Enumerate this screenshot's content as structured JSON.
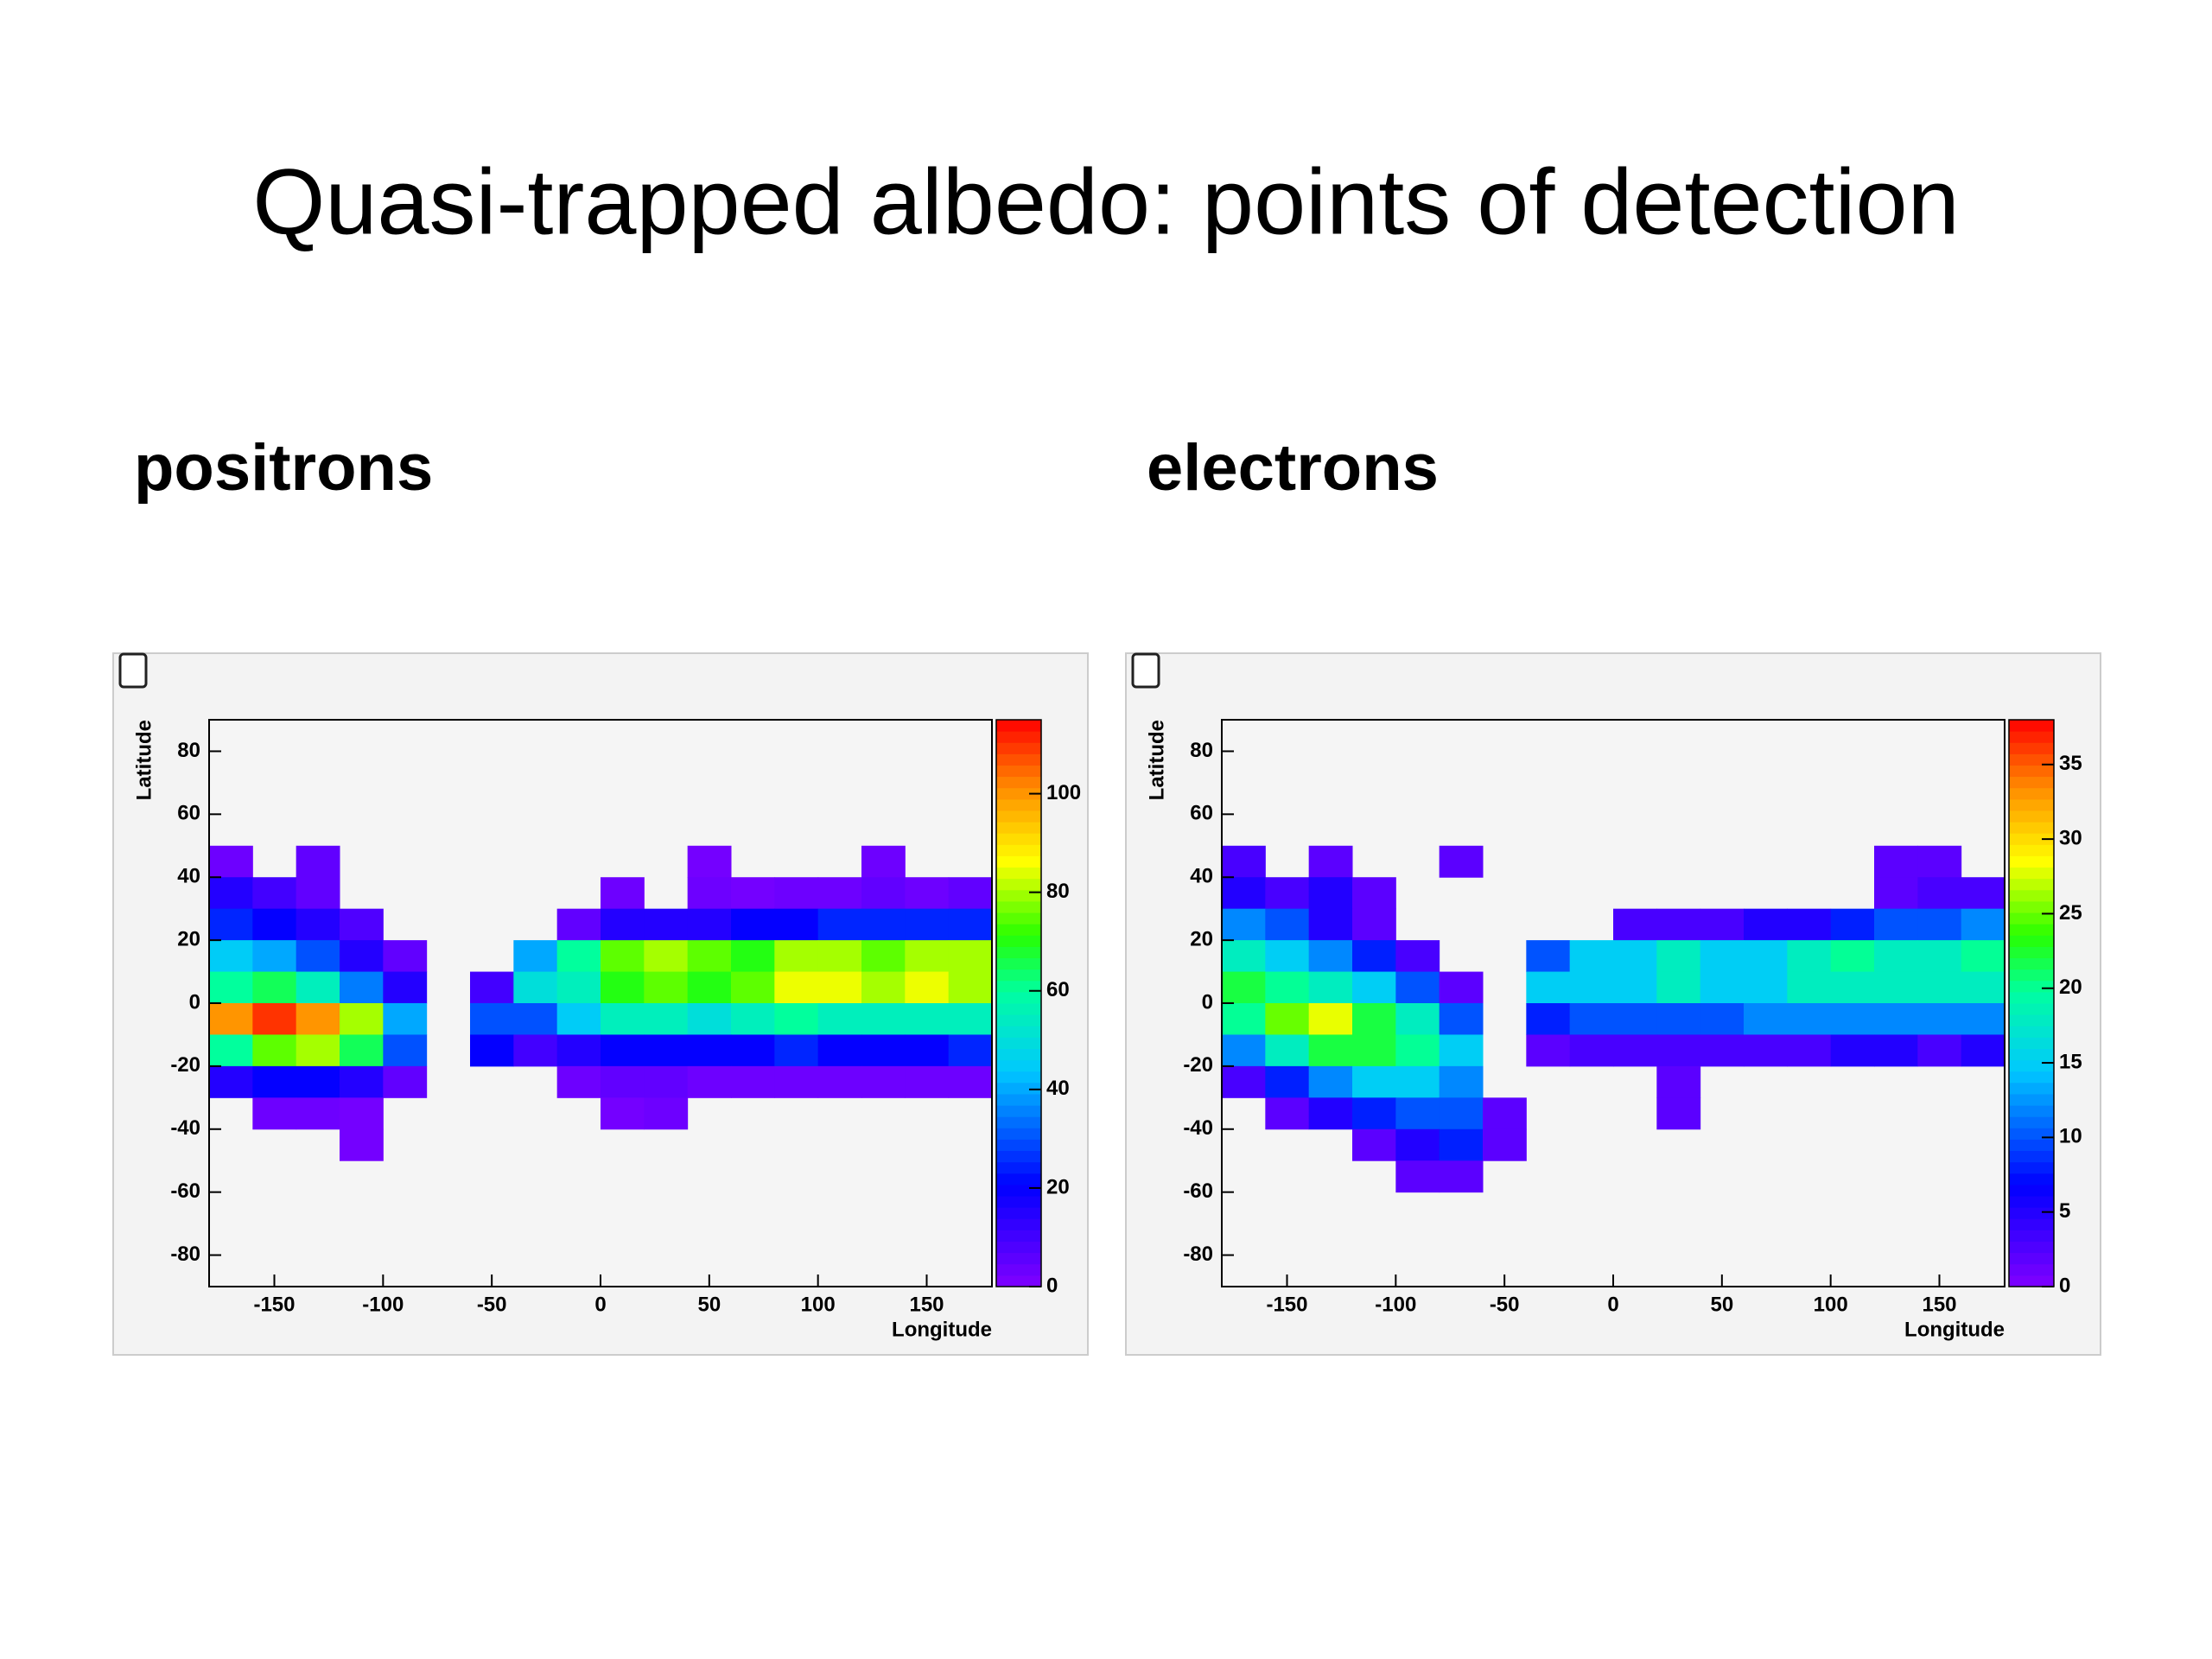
{
  "title": "Quasi-trapped albedo: points of detection",
  "chart_data": [
    {
      "type": "heatmap",
      "title": "positrons",
      "x_label": "Longitude",
      "y_label": "Latitude",
      "xlim": [
        -180,
        180
      ],
      "xticks": [
        -150,
        -100,
        -50,
        0,
        50,
        100,
        150
      ],
      "ylim": [
        -90,
        90
      ],
      "yticks": [
        -80,
        -60,
        -40,
        -20,
        0,
        20,
        40,
        60,
        80
      ],
      "zlim": [
        0,
        115
      ],
      "zticks": [
        0,
        20,
        40,
        60,
        80,
        100
      ],
      "values": [
        [
          0,
          0,
          0,
          0,
          0,
          0,
          0,
          0,
          0,
          0,
          0,
          0,
          0,
          0,
          0,
          0,
          0,
          0
        ],
        [
          0,
          0,
          0,
          0,
          0,
          0,
          0,
          0,
          0,
          0,
          0,
          0,
          0,
          0,
          0,
          0,
          0,
          0
        ],
        [
          0,
          0,
          0,
          0,
          0,
          0,
          0,
          0,
          0,
          0,
          0,
          0,
          0,
          0,
          0,
          0,
          0,
          0
        ],
        [
          0,
          0,
          0,
          0,
          0,
          0,
          0,
          0,
          0,
          0,
          0,
          0,
          0,
          0,
          0,
          0,
          0,
          0
        ],
        [
          3,
          0,
          5,
          0,
          0,
          0,
          0,
          0,
          0,
          0,
          0,
          2,
          0,
          0,
          0,
          3,
          0,
          0
        ],
        [
          15,
          10,
          5,
          0,
          0,
          0,
          0,
          0,
          0,
          3,
          0,
          3,
          2,
          3,
          3,
          5,
          3,
          5
        ],
        [
          25,
          20,
          15,
          8,
          0,
          0,
          0,
          0,
          5,
          15,
          15,
          15,
          20,
          20,
          25,
          25,
          25,
          25
        ],
        [
          45,
          40,
          30,
          15,
          5,
          0,
          0,
          40,
          60,
          75,
          80,
          75,
          70,
          80,
          80,
          75,
          80,
          80
        ],
        [
          60,
          65,
          55,
          35,
          15,
          0,
          10,
          50,
          55,
          70,
          75,
          70,
          75,
          85,
          85,
          80,
          85,
          80
        ],
        [
          100,
          110,
          100,
          80,
          40,
          0,
          30,
          30,
          45,
          55,
          55,
          50,
          55,
          60,
          55,
          55,
          55,
          55
        ],
        [
          60,
          75,
          80,
          65,
          30,
          0,
          20,
          10,
          15,
          20,
          20,
          20,
          20,
          25,
          20,
          20,
          20,
          25
        ],
        [
          15,
          20,
          20,
          15,
          5,
          0,
          0,
          0,
          3,
          5,
          5,
          3,
          3,
          3,
          3,
          3,
          3,
          3
        ],
        [
          0,
          3,
          3,
          2,
          0,
          0,
          0,
          0,
          0,
          2,
          3,
          0,
          0,
          0,
          0,
          0,
          0,
          0
        ],
        [
          0,
          0,
          0,
          2,
          0,
          0,
          0,
          0,
          0,
          0,
          0,
          0,
          0,
          0,
          0,
          0,
          0,
          0
        ],
        [
          0,
          0,
          0,
          0,
          0,
          0,
          0,
          0,
          0,
          0,
          0,
          0,
          0,
          0,
          0,
          0,
          0,
          0
        ],
        [
          0,
          0,
          0,
          0,
          0,
          0,
          0,
          0,
          0,
          0,
          0,
          0,
          0,
          0,
          0,
          0,
          0,
          0
        ],
        [
          0,
          0,
          0,
          0,
          0,
          0,
          0,
          0,
          0,
          0,
          0,
          0,
          0,
          0,
          0,
          0,
          0,
          0
        ],
        [
          0,
          0,
          0,
          0,
          0,
          0,
          0,
          0,
          0,
          0,
          0,
          0,
          0,
          0,
          0,
          0,
          0,
          0
        ]
      ]
    },
    {
      "type": "heatmap",
      "title": "electrons",
      "x_label": "Longitude",
      "y_label": "Latitude",
      "xlim": [
        -180,
        180
      ],
      "xticks": [
        -150,
        -100,
        -50,
        0,
        50,
        100,
        150
      ],
      "ylim": [
        -90,
        90
      ],
      "yticks": [
        -80,
        -60,
        -40,
        -20,
        0,
        20,
        40,
        60,
        80
      ],
      "zlim": [
        0,
        38
      ],
      "zticks": [
        0,
        5,
        10,
        15,
        20,
        25,
        30,
        35
      ],
      "values": [
        [
          0,
          0,
          0,
          0,
          0,
          0,
          0,
          0,
          0,
          0,
          0,
          0,
          0,
          0,
          0,
          0,
          0,
          0
        ],
        [
          0,
          0,
          0,
          0,
          0,
          0,
          0,
          0,
          0,
          0,
          0,
          0,
          0,
          0,
          0,
          0,
          0,
          0
        ],
        [
          0,
          0,
          0,
          0,
          0,
          0,
          0,
          0,
          0,
          0,
          0,
          0,
          0,
          0,
          0,
          0,
          0,
          0
        ],
        [
          0,
          0,
          0,
          0,
          0,
          0,
          0,
          0,
          0,
          0,
          0,
          0,
          0,
          0,
          0,
          0,
          0,
          0
        ],
        [
          3,
          0,
          2,
          0,
          0,
          2,
          0,
          0,
          0,
          0,
          0,
          0,
          0,
          0,
          0,
          2,
          2,
          0
        ],
        [
          5,
          3,
          5,
          2,
          0,
          0,
          0,
          0,
          0,
          0,
          0,
          0,
          0,
          0,
          0,
          2,
          3,
          3
        ],
        [
          12,
          10,
          5,
          2,
          0,
          0,
          0,
          0,
          0,
          3,
          3,
          3,
          5,
          5,
          8,
          10,
          10,
          12
        ],
        [
          18,
          15,
          12,
          8,
          3,
          0,
          0,
          10,
          15,
          15,
          18,
          15,
          15,
          18,
          20,
          18,
          18,
          20
        ],
        [
          22,
          20,
          18,
          15,
          10,
          2,
          0,
          15,
          15,
          15,
          18,
          15,
          15,
          18,
          18,
          18,
          18,
          18
        ],
        [
          20,
          25,
          28,
          22,
          18,
          10,
          0,
          8,
          10,
          10,
          10,
          10,
          12,
          12,
          12,
          12,
          12,
          12
        ],
        [
          12,
          18,
          22,
          22,
          20,
          15,
          0,
          2,
          3,
          3,
          3,
          3,
          3,
          3,
          5,
          5,
          3,
          5
        ],
        [
          3,
          8,
          12,
          15,
          15,
          12,
          0,
          0,
          0,
          0,
          2,
          0,
          0,
          0,
          0,
          0,
          0,
          0
        ],
        [
          0,
          2,
          5,
          8,
          10,
          10,
          2,
          0,
          0,
          0,
          2,
          0,
          0,
          0,
          0,
          0,
          0,
          0
        ],
        [
          0,
          0,
          0,
          2,
          5,
          8,
          2,
          0,
          0,
          0,
          0,
          0,
          0,
          0,
          0,
          0,
          0,
          0
        ],
        [
          0,
          0,
          0,
          0,
          2,
          2,
          0,
          0,
          0,
          0,
          0,
          0,
          0,
          0,
          0,
          0,
          0,
          0
        ],
        [
          0,
          0,
          0,
          0,
          0,
          0,
          0,
          0,
          0,
          0,
          0,
          0,
          0,
          0,
          0,
          0,
          0,
          0
        ],
        [
          0,
          0,
          0,
          0,
          0,
          0,
          0,
          0,
          0,
          0,
          0,
          0,
          0,
          0,
          0,
          0,
          0,
          0
        ],
        [
          0,
          0,
          0,
          0,
          0,
          0,
          0,
          0,
          0,
          0,
          0,
          0,
          0,
          0,
          0,
          0,
          0,
          0
        ]
      ]
    }
  ]
}
